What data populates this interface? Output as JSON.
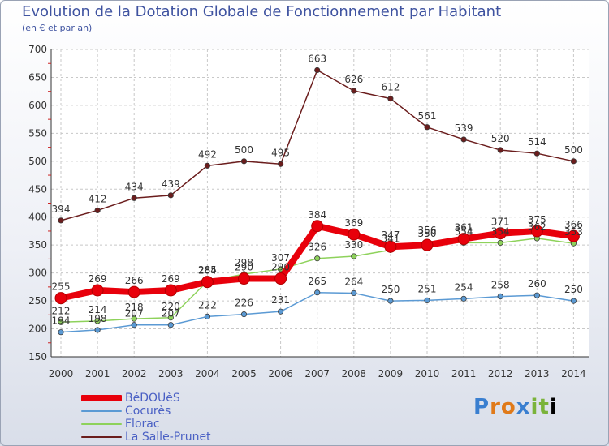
{
  "chart_data": {
    "type": "line",
    "title": "Evolution de la Dotation Globale de Fonctionnement par Habitant",
    "subtitle": "(en € et par an)",
    "x": [
      "2000",
      "2001",
      "2002",
      "2003",
      "2004",
      "2005",
      "2006",
      "2007",
      "2008",
      "2009",
      "2010",
      "2011",
      "2012",
      "2013",
      "2014"
    ],
    "ylim": [
      150,
      700
    ],
    "yticks": [
      150,
      200,
      250,
      300,
      350,
      400,
      450,
      500,
      550,
      600,
      650,
      700
    ],
    "grid": true,
    "legend_position": "bottom-left",
    "series": [
      {
        "name": "BéDOUèS",
        "color": "#e8000b",
        "values": [
          255,
          269,
          266,
          269,
          284,
          290,
          290,
          384,
          369,
          347,
          350,
          361,
          371,
          375,
          366
        ],
        "labels": [
          "255",
          "269",
          "266",
          "269",
          "284",
          "290",
          "290",
          "384",
          "369",
          "347",
          "350",
          "361",
          "371",
          "375",
          "366"
        ]
      },
      {
        "name": "Cocurès",
        "color": "#5b9ad4",
        "values": [
          194,
          198,
          207,
          207,
          222,
          226,
          231,
          265,
          264,
          250,
          251,
          254,
          258,
          260,
          250
        ],
        "labels": [
          "194",
          "198",
          "207",
          "207",
          "222",
          "226",
          "231",
          "265",
          "264",
          "250",
          "251",
          "254",
          "258",
          "260",
          "250"
        ]
      },
      {
        "name": "Florac",
        "color": "#8ed25b",
        "values": [
          212,
          214,
          218,
          220,
          285,
          298,
          307,
          326,
          330,
          341,
          356,
          354,
          354,
          362,
          353
        ],
        "labels": [
          "212",
          "214",
          "218",
          "220",
          "285",
          "298",
          "307",
          "326",
          "330",
          "341",
          "356",
          "354",
          "354",
          "362",
          "353"
        ]
      },
      {
        "name": "La Salle-Prunet",
        "color": "#6b1d1d",
        "values": [
          394,
          412,
          434,
          439,
          492,
          500,
          495,
          663,
          626,
          612,
          561,
          539,
          520,
          514,
          500
        ],
        "labels": [
          "394",
          "412",
          "434",
          "439",
          "492",
          "500",
          "495",
          "663",
          "626",
          "612",
          "561",
          "539",
          "520",
          "514",
          "500"
        ]
      }
    ]
  },
  "logo": {
    "letters": [
      "P",
      "r",
      "o",
      "x",
      "i",
      "t",
      "i"
    ]
  }
}
